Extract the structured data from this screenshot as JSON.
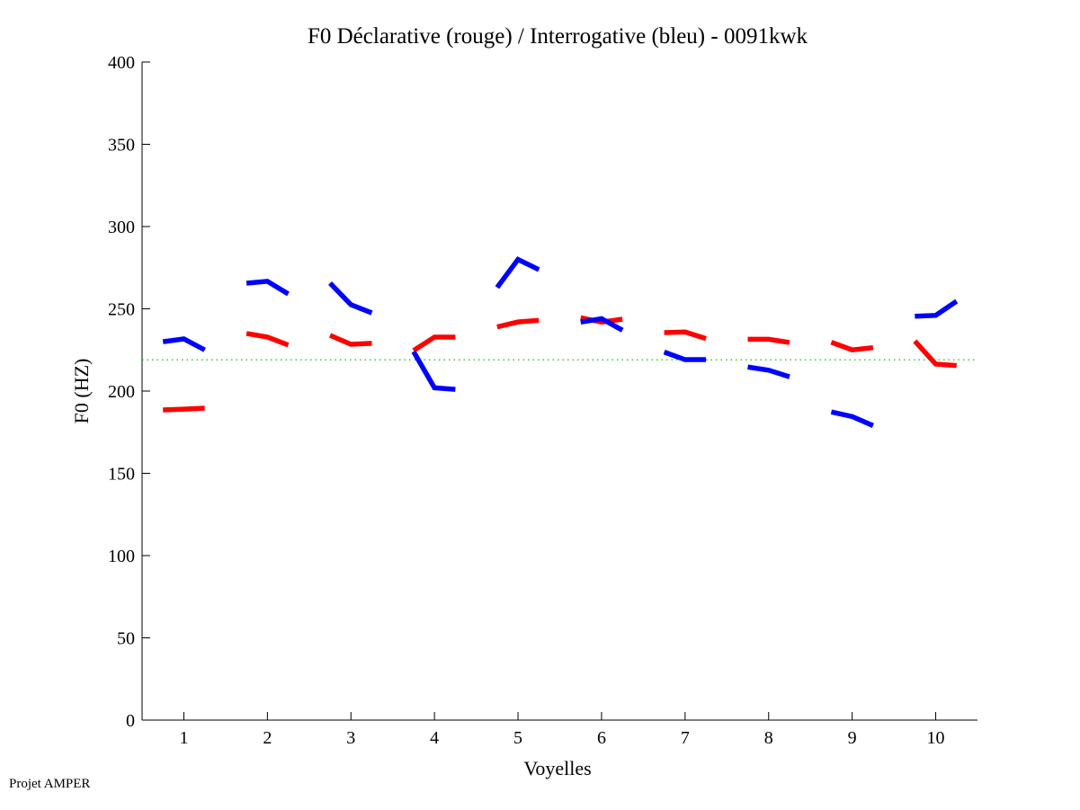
{
  "chart_data": {
    "type": "line",
    "title": "F0 Déclarative (rouge) / Interrogative (bleu) - 0091kwk",
    "xlabel": "Voyelles",
    "ylabel": "F0 (HZ)",
    "xlim": [
      0.5,
      10.5
    ],
    "ylim": [
      0,
      400
    ],
    "xticks": [
      "1",
      "2",
      "3",
      "4",
      "5",
      "6",
      "7",
      "8",
      "9",
      "10"
    ],
    "yticks": [
      "0",
      "50",
      "100",
      "150",
      "200",
      "250",
      "300",
      "350",
      "400"
    ],
    "grid": false,
    "reference_line": {
      "value": 219,
      "color": "#00cc00",
      "style": "dotted"
    },
    "point_offsets": [
      -0.25,
      0,
      0.25
    ],
    "series": [
      {
        "name": "Déclarative",
        "color": "#ff0000",
        "segments": [
          [
            188.5,
            189,
            189.6
          ],
          [
            235,
            232.8,
            228
          ],
          [
            233.9,
            228.4,
            229
          ],
          [
            224.6,
            232.8,
            232.8
          ],
          [
            239,
            242,
            243
          ],
          [
            244.6,
            241.9,
            243.7
          ],
          [
            235.5,
            235.9,
            231.9
          ],
          [
            231.5,
            231.5,
            229.5
          ],
          [
            229.7,
            225,
            226.4
          ],
          [
            230.4,
            216.4,
            215.5
          ]
        ]
      },
      {
        "name": "Interrogative",
        "color": "#0000ff",
        "segments": [
          [
            230,
            231.7,
            225
          ],
          [
            265.6,
            266.7,
            259
          ],
          [
            265.6,
            252.5,
            247.5
          ],
          [
            224,
            202,
            201
          ],
          [
            263,
            280,
            273.8
          ],
          [
            241.9,
            244,
            237
          ],
          [
            223.7,
            219.1,
            219.1
          ],
          [
            214.6,
            212.7,
            208.7
          ],
          [
            187.3,
            184.5,
            179
          ],
          [
            245.5,
            246,
            254.6
          ]
        ]
      }
    ]
  },
  "footer": "Projet AMPER"
}
